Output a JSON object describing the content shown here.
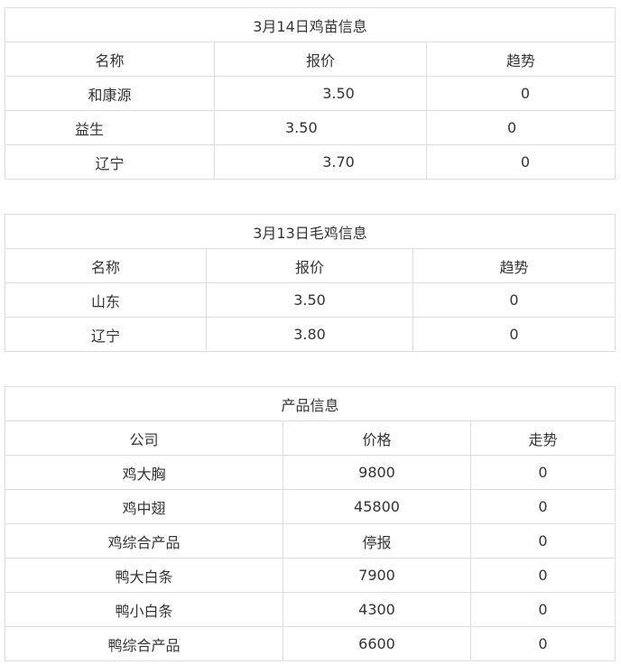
{
  "table1": {
    "title": "3月14日鸡苗信息",
    "headers": [
      "名称",
      "报价",
      "趋势"
    ],
    "rows": [
      [
        "和康源",
        "3.50",
        "0"
      ],
      [
        "益生",
        "3.50",
        "0"
      ],
      [
        "辽宁",
        "3.70",
        "0"
      ]
    ]
  },
  "table2": {
    "title": "3月13日毛鸡信息",
    "headers": [
      "名称",
      "报价",
      "趋势"
    ],
    "rows": [
      [
        "山东",
        "3.50",
        "0"
      ],
      [
        "辽宁",
        "3.80",
        "0"
      ]
    ]
  },
  "table3": {
    "title": "产品信息",
    "headers": [
      "公司",
      "价格",
      "走势"
    ],
    "rows": [
      [
        "鸡大胸",
        "9800",
        "0"
      ],
      [
        "鸡中翅",
        "45800",
        "0"
      ],
      [
        "鸡综合产品",
        "停报",
        "0"
      ],
      [
        "鸭大白条",
        "7900",
        "0"
      ],
      [
        "鸭小白条",
        "4300",
        "0"
      ],
      [
        "鸭综合产品",
        "6600",
        "0"
      ]
    ]
  }
}
